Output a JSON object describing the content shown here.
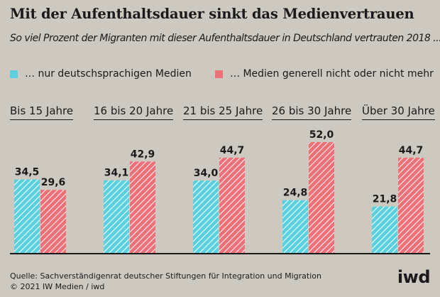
{
  "title": "Mit der Aufenthaltsdauer sinkt das Medienvertrauen",
  "subtitle": "So viel Prozent der Migranten mit dieser Aufenthaltsdauer in Deutschland vertrauten 2018 ...",
  "colors": {
    "cyan": "#5cd0dc",
    "red": "#f07078",
    "background": "#cdc9c1",
    "text": "#1a1a1a"
  },
  "chart_data": {
    "type": "bar",
    "categories": [
      "Bis 15 Jahre",
      "16 bis 20 Jahre",
      "21 bis 25 Jahre",
      "26 bis 30 Jahre",
      "Über 30 Jahre"
    ],
    "series": [
      {
        "name": "… nur deutschsprachigen Medien",
        "values": [
          34.5,
          34.1,
          34.0,
          24.8,
          21.8
        ],
        "labels": [
          "34,5",
          "34,1",
          "34,0",
          "24,8",
          "21,8"
        ]
      },
      {
        "name": "… Medien generell nicht oder nicht mehr",
        "values": [
          29.6,
          42.9,
          44.7,
          52.0,
          44.7
        ],
        "labels": [
          "29,6",
          "42,9",
          "44,7",
          "52,0",
          "44,7"
        ]
      }
    ],
    "ylim": [
      0,
      52
    ]
  },
  "footer": {
    "source": "Quelle: Sachverständigenrat deutscher Stiftungen für Integration und Migration",
    "copyright": "© 2021 IW Medien / iwd",
    "logo": "iwd"
  }
}
